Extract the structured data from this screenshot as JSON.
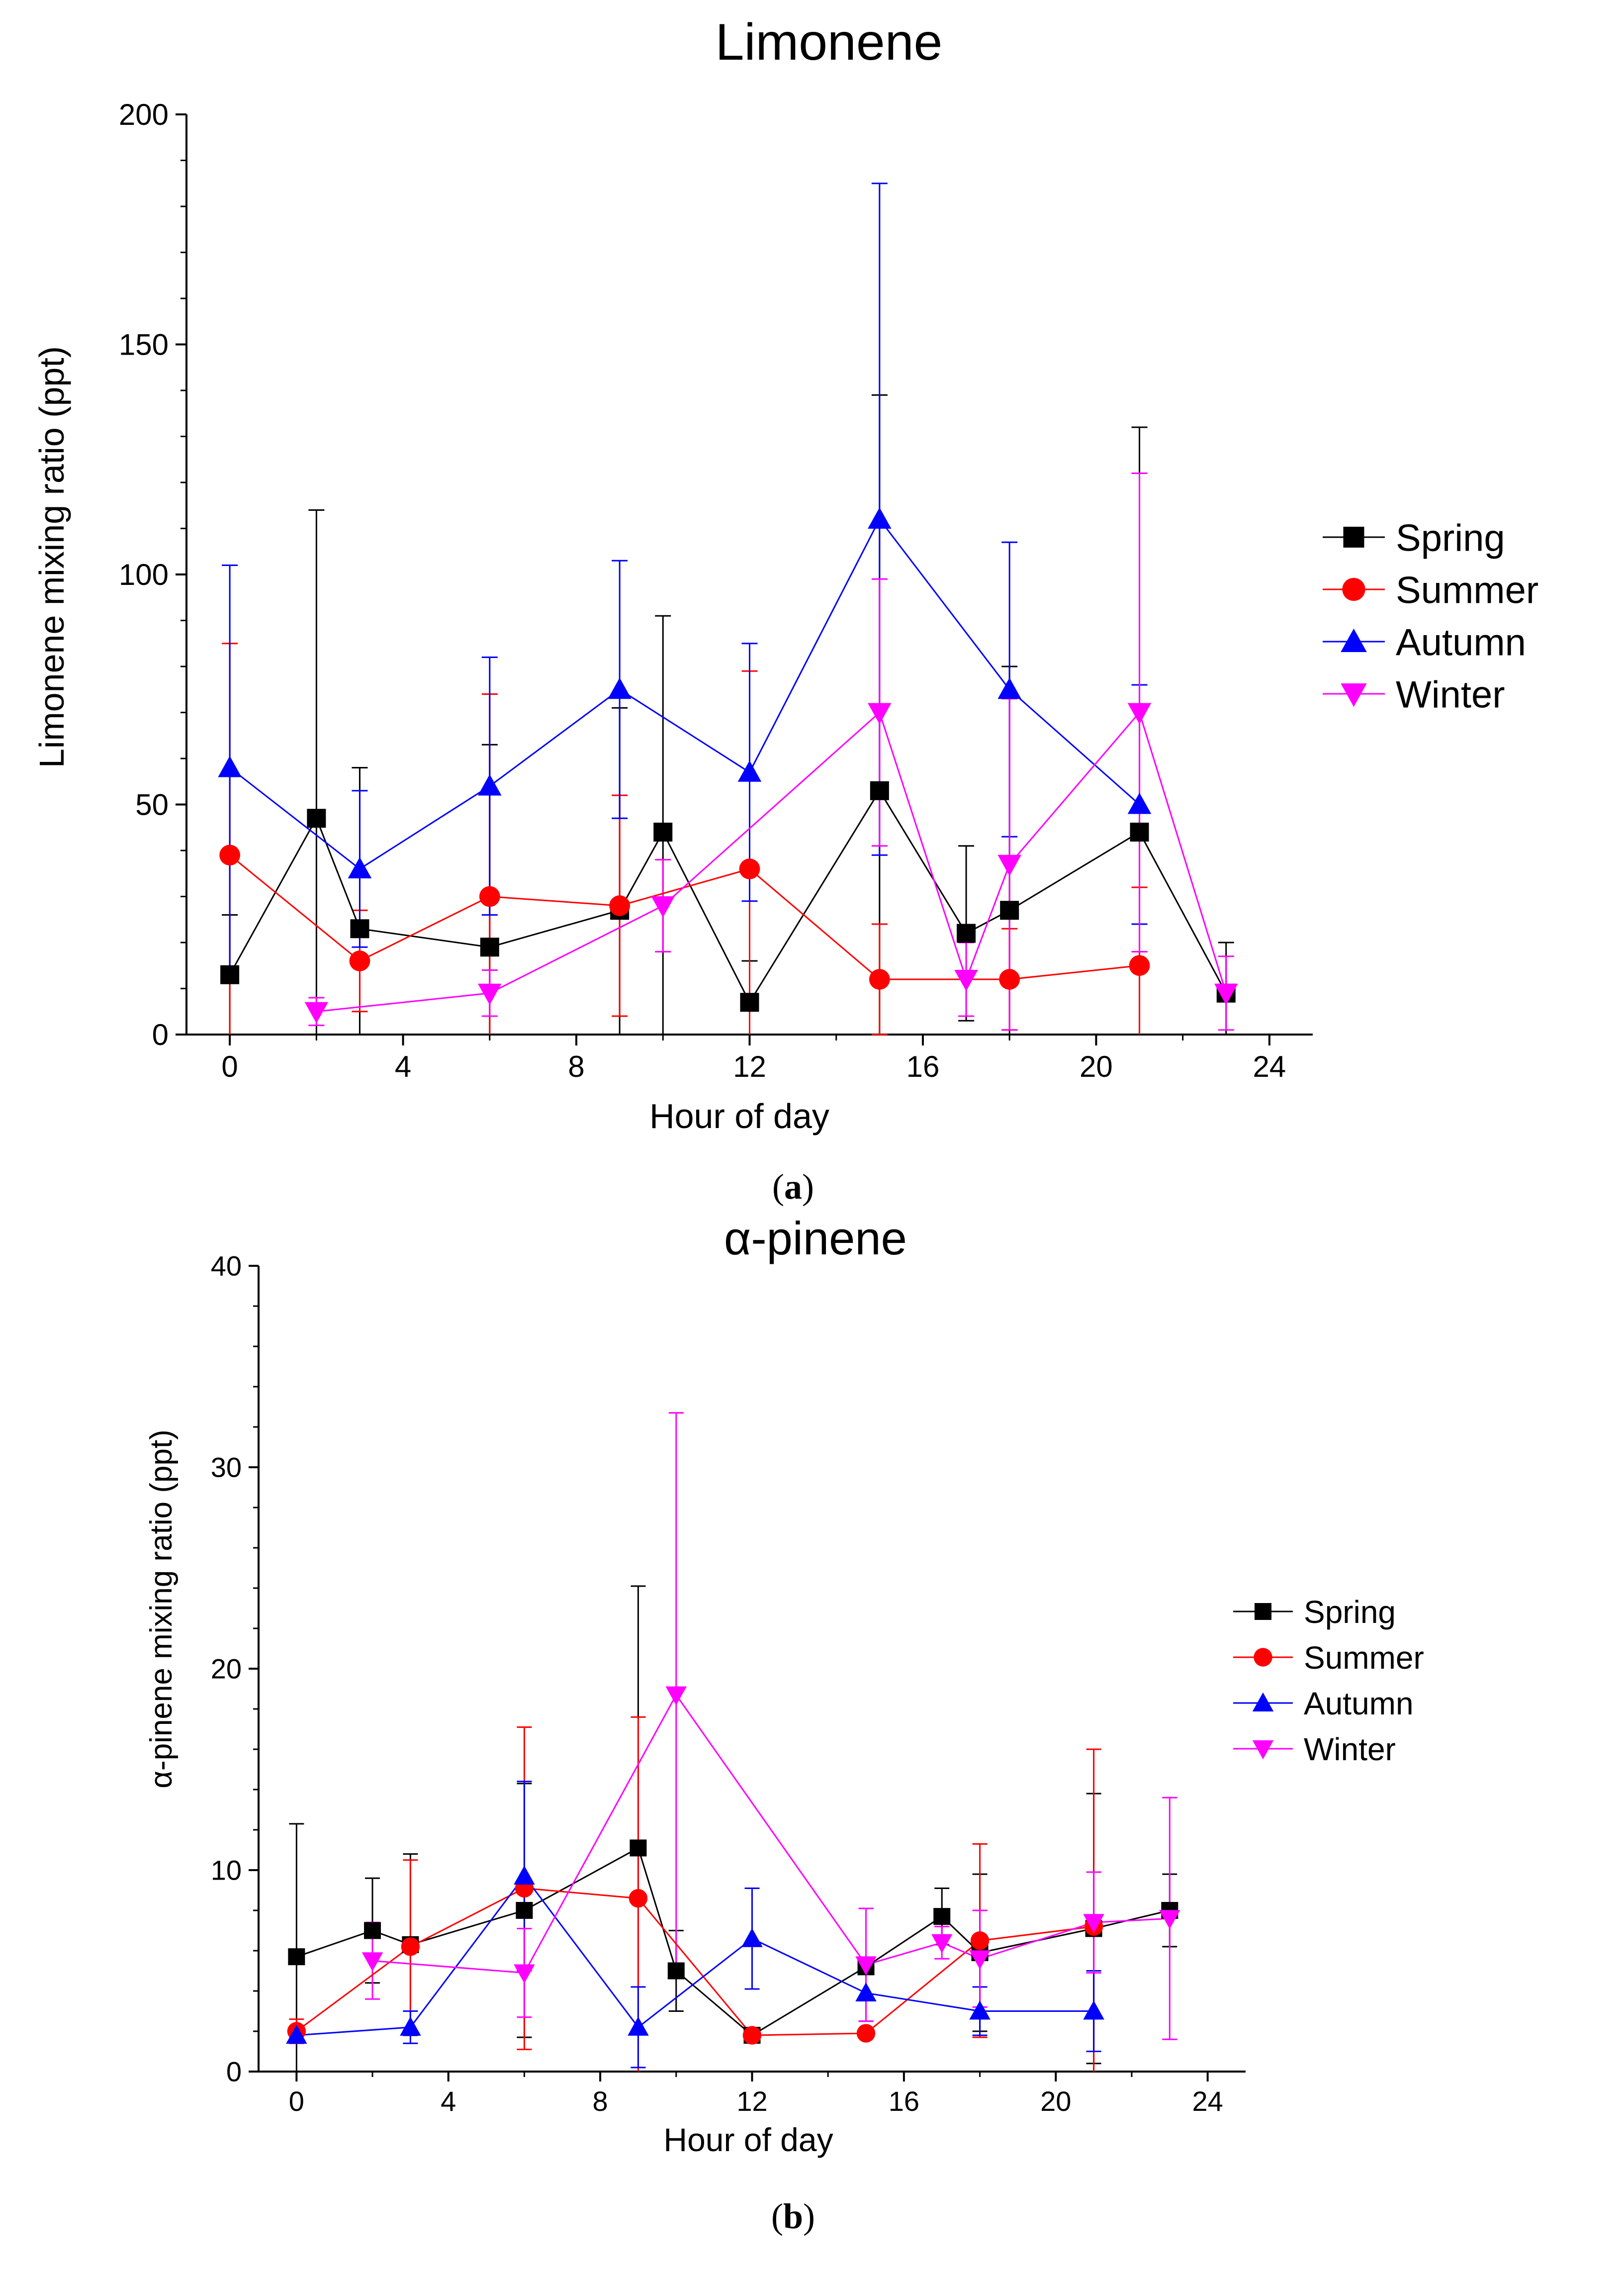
{
  "colors": {
    "spring": "#000000",
    "summer": "#ff0000",
    "autumn": "#0000ff",
    "winter": "#ff00ff",
    "axis": "#000000",
    "background": "#ffffff"
  },
  "figure": {
    "panel_a_label": "a",
    "panel_b_label": "b"
  },
  "chart_data": [
    {
      "type": "line",
      "title": "Limonene",
      "xlabel": "Hour of day",
      "ylabel": "Limonene mixing ratio   (ppt)",
      "xlim": [
        -1,
        25
      ],
      "ylim": [
        0,
        200
      ],
      "xticks": [
        0,
        4,
        8,
        12,
        16,
        20,
        24
      ],
      "xtick_labels": [
        "0",
        "4",
        "8",
        "12",
        "16",
        "20",
        "24"
      ],
      "yticks": [
        0,
        50,
        100,
        150,
        200
      ],
      "ytick_labels": [
        "0",
        "50",
        "100",
        "150",
        "200"
      ],
      "legend_position": "right",
      "series": [
        {
          "name": "Spring",
          "marker": "square",
          "color": "#000000",
          "x": [
            0,
            2,
            3,
            6,
            9,
            10,
            12,
            15,
            17,
            18,
            21,
            23
          ],
          "y": [
            13,
            47,
            23,
            19,
            27,
            44,
            7,
            53,
            22,
            27,
            44,
            9
          ],
          "err": [
            13,
            67,
            35,
            44,
            44,
            47,
            9,
            86,
            19,
            53,
            88,
            11
          ]
        },
        {
          "name": "Summer",
          "marker": "circle",
          "color": "#ff0000",
          "x": [
            0,
            3,
            6,
            9,
            12,
            15,
            18,
            21
          ],
          "y": [
            39,
            16,
            30,
            28,
            36,
            12,
            12,
            15
          ],
          "err": [
            46,
            11,
            44,
            24,
            43,
            12,
            11,
            17
          ]
        },
        {
          "name": "Autumn",
          "marker": "triangle-up",
          "color": "#0000ff",
          "x": [
            0,
            3,
            6,
            9,
            12,
            15,
            18,
            21
          ],
          "y": [
            58,
            36,
            54,
            75,
            57,
            112,
            75,
            50
          ],
          "err": [
            44,
            17,
            28,
            28,
            28,
            73,
            32,
            26
          ]
        },
        {
          "name": "Winter",
          "marker": "triangle-down",
          "color": "#ff00ff",
          "x": [
            2,
            6,
            10,
            15,
            17,
            18,
            21,
            23
          ],
          "y": [
            5,
            9,
            28,
            70,
            12,
            37,
            70,
            9
          ],
          "err": [
            3,
            5,
            10,
            29,
            8,
            36,
            52,
            8
          ]
        }
      ]
    },
    {
      "type": "line",
      "title": "α-pinene",
      "xlabel": "Hour of day",
      "ylabel": "α-pinene mixing ratio (ppt)",
      "xlim": [
        -1,
        25
      ],
      "ylim": [
        0,
        40
      ],
      "xticks": [
        0,
        4,
        8,
        12,
        16,
        20,
        24
      ],
      "xtick_labels": [
        "0",
        "4",
        "8",
        "12",
        "16",
        "20",
        "24"
      ],
      "yticks": [
        0,
        10,
        20,
        30,
        40
      ],
      "ytick_labels": [
        "0",
        "10",
        "20",
        "30",
        "40"
      ],
      "legend_position": "right",
      "series": [
        {
          "name": "Spring",
          "marker": "square",
          "color": "#000000",
          "x": [
            0,
            2,
            3,
            6,
            9,
            10,
            12,
            15,
            17,
            18,
            21,
            23
          ],
          "y": [
            5.7,
            7.0,
            6.3,
            8.0,
            11.1,
            5.0,
            1.8,
            5.2,
            7.7,
            5.9,
            7.1,
            8.0
          ],
          "err": [
            6.6,
            2.6,
            4.5,
            6.3,
            13.0,
            2.0,
            0.3,
            0.3,
            1.4,
            3.9,
            6.7,
            1.8
          ]
        },
        {
          "name": "Summer",
          "marker": "circle",
          "color": "#ff0000",
          "x": [
            0,
            3,
            6,
            9,
            12,
            15,
            18,
            21
          ],
          "y": [
            2.0,
            6.2,
            9.1,
            8.6,
            1.8,
            1.9,
            6.5,
            7.2
          ],
          "err": [
            0.6,
            4.3,
            8.0,
            9.0,
            0.1,
            0.1,
            4.8,
            8.8
          ]
        },
        {
          "name": "Autumn",
          "marker": "triangle-up",
          "color": "#0000ff",
          "x": [
            0,
            3,
            6,
            9,
            12,
            15,
            18,
            21
          ],
          "y": [
            1.8,
            2.2,
            9.7,
            2.2,
            6.6,
            3.9,
            3.0,
            3.0
          ],
          "err": [
            0.2,
            0.8,
            4.7,
            2.0,
            2.5,
            1.4,
            1.2,
            2.0
          ]
        },
        {
          "name": "Winter",
          "marker": "triangle-down",
          "color": "#ff00ff",
          "x": [
            2,
            6,
            10,
            15,
            17,
            18,
            21,
            23
          ],
          "y": [
            5.5,
            4.9,
            18.7,
            5.3,
            6.4,
            5.6,
            7.4,
            7.6
          ],
          "err": [
            1.9,
            2.2,
            14.0,
            2.8,
            0.8,
            2.4,
            2.5,
            6.0
          ]
        }
      ]
    }
  ]
}
